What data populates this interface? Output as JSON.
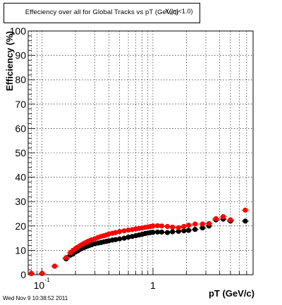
{
  "chart_data": {
    "type": "scatter",
    "title": "Effeciency over all for Global Tracks vs pT (GeV/c)",
    "title_overlay": "Y(|η|<1.0)",
    "xlabel": "pT (GeV/c)",
    "ylabel": "Efficiency (%)",
    "x_scale": "log",
    "xlim": [
      0.075,
      8.0
    ],
    "ylim": [
      0,
      100
    ],
    "y_ticks": [
      0,
      10,
      20,
      30,
      40,
      50,
      60,
      70,
      80,
      90,
      100
    ],
    "x_major_ticks": [
      {
        "value": 0.1,
        "base": "10",
        "exp": "-1"
      },
      {
        "value": 1,
        "label": "1"
      }
    ],
    "grid": true,
    "series": [
      {
        "color": "#000000",
        "points": [
          [
            0.08,
            0.5
          ],
          [
            0.1,
            0.5
          ],
          [
            0.13,
            3.5
          ],
          [
            0.165,
            6.5
          ],
          [
            0.18,
            8
          ],
          [
            0.19,
            8.5
          ],
          [
            0.2,
            9.3
          ],
          [
            0.21,
            9.8
          ],
          [
            0.22,
            10.4
          ],
          [
            0.23,
            10.8
          ],
          [
            0.24,
            11.2
          ],
          [
            0.25,
            11.5
          ],
          [
            0.26,
            11.8
          ],
          [
            0.27,
            12.1
          ],
          [
            0.28,
            12.3
          ],
          [
            0.3,
            12.7
          ],
          [
            0.32,
            13
          ],
          [
            0.34,
            13.2
          ],
          [
            0.36,
            13.5
          ],
          [
            0.38,
            13.7
          ],
          [
            0.4,
            13.9
          ],
          [
            0.43,
            14.2
          ],
          [
            0.46,
            14.4
          ],
          [
            0.5,
            14.7
          ],
          [
            0.55,
            15
          ],
          [
            0.6,
            15.4
          ],
          [
            0.65,
            15.7
          ],
          [
            0.7,
            16
          ],
          [
            0.75,
            16.3
          ],
          [
            0.8,
            16.6
          ],
          [
            0.85,
            16.9
          ],
          [
            0.9,
            17.1
          ],
          [
            0.95,
            17.3
          ],
          [
            1.0,
            17.4
          ],
          [
            1.1,
            17.5
          ],
          [
            1.2,
            17.5
          ],
          [
            1.35,
            17.3
          ],
          [
            1.5,
            17.6
          ],
          [
            1.7,
            17.8
          ],
          [
            1.9,
            18
          ],
          [
            2.1,
            18.2
          ],
          [
            2.4,
            18.6
          ],
          [
            2.8,
            19.2
          ],
          [
            3.2,
            20
          ],
          [
            3.7,
            22.5
          ],
          [
            4.3,
            22.8
          ],
          [
            5.0,
            22
          ],
          [
            6.8,
            22
          ]
        ]
      },
      {
        "color": "#ff0000",
        "points": [
          [
            0.08,
            0.5
          ],
          [
            0.1,
            0.5
          ],
          [
            0.13,
            3.5
          ],
          [
            0.165,
            7
          ],
          [
            0.18,
            9
          ],
          [
            0.19,
            10
          ],
          [
            0.2,
            10.7
          ],
          [
            0.21,
            11.3
          ],
          [
            0.22,
            11.9
          ],
          [
            0.23,
            12.4
          ],
          [
            0.24,
            12.9
          ],
          [
            0.25,
            13.3
          ],
          [
            0.26,
            13.7
          ],
          [
            0.27,
            14
          ],
          [
            0.28,
            14.3
          ],
          [
            0.3,
            14.8
          ],
          [
            0.32,
            15.3
          ],
          [
            0.34,
            15.7
          ],
          [
            0.36,
            16
          ],
          [
            0.38,
            16.3
          ],
          [
            0.4,
            16.7
          ],
          [
            0.43,
            17
          ],
          [
            0.46,
            17.3
          ],
          [
            0.5,
            17.7
          ],
          [
            0.55,
            18
          ],
          [
            0.6,
            18.3
          ],
          [
            0.65,
            18.5
          ],
          [
            0.7,
            18.8
          ],
          [
            0.75,
            19
          ],
          [
            0.8,
            19.2
          ],
          [
            0.85,
            19.4
          ],
          [
            0.9,
            19.6
          ],
          [
            0.95,
            19.8
          ],
          [
            1.0,
            20
          ],
          [
            1.1,
            20.1
          ],
          [
            1.2,
            20
          ],
          [
            1.35,
            19.8
          ],
          [
            1.5,
            19.5
          ],
          [
            1.7,
            19.3
          ],
          [
            1.9,
            19.8
          ],
          [
            2.1,
            20.3
          ],
          [
            2.4,
            20.8
          ],
          [
            2.8,
            20.8
          ],
          [
            3.2,
            21
          ],
          [
            3.7,
            23
          ],
          [
            4.3,
            23.8
          ],
          [
            5.0,
            22.5
          ],
          [
            6.8,
            26.5
          ]
        ]
      }
    ]
  },
  "footer": {
    "timestamp": "Wed Nov  9 10:38:52 2011"
  }
}
